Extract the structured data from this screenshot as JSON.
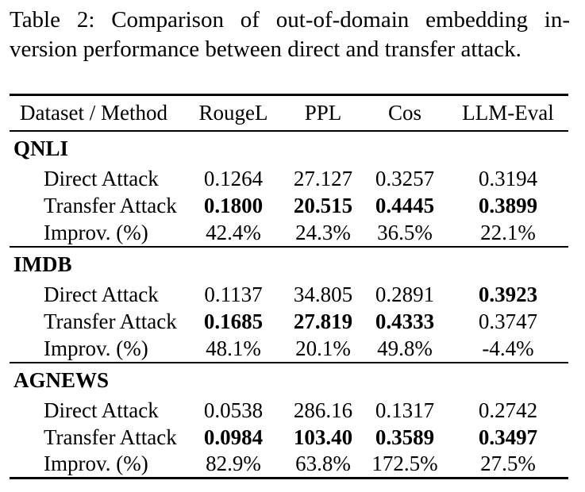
{
  "caption": {
    "line1": "Table 2: Comparison of out-of-domain embedding in-",
    "line2": "version performance between direct and transfer attack."
  },
  "table": {
    "columns": [
      "Dataset / Method",
      "RougeL",
      "PPL",
      "Cos",
      "LLM-Eval"
    ],
    "sections": [
      {
        "name": "QNLI",
        "rows": [
          {
            "label": "Direct Attack",
            "values": [
              "0.1264",
              "27.127",
              "0.3257",
              "0.3194"
            ],
            "bold": [
              false,
              false,
              false,
              false
            ]
          },
          {
            "label": "Transfer Attack",
            "values": [
              "0.1800",
              "20.515",
              "0.4445",
              "0.3899"
            ],
            "bold": [
              true,
              true,
              true,
              true
            ]
          },
          {
            "label": "Improv. (%)",
            "values": [
              "42.4%",
              "24.3%",
              "36.5%",
              "22.1%"
            ],
            "bold": [
              false,
              false,
              false,
              false
            ]
          }
        ]
      },
      {
        "name": "IMDB",
        "rows": [
          {
            "label": "Direct Attack",
            "values": [
              "0.1137",
              "34.805",
              "0.2891",
              "0.3923"
            ],
            "bold": [
              false,
              false,
              false,
              true
            ]
          },
          {
            "label": "Transfer Attack",
            "values": [
              "0.1685",
              "27.819",
              "0.4333",
              "0.3747"
            ],
            "bold": [
              true,
              true,
              true,
              false
            ]
          },
          {
            "label": "Improv. (%)",
            "values": [
              "48.1%",
              "20.1%",
              "49.8%",
              "-4.4%"
            ],
            "bold": [
              false,
              false,
              false,
              false
            ]
          }
        ]
      },
      {
        "name": "AGNEWS",
        "rows": [
          {
            "label": "Direct Attack",
            "values": [
              "0.0538",
              "286.16",
              "0.1317",
              "0.2742"
            ],
            "bold": [
              false,
              false,
              false,
              false
            ]
          },
          {
            "label": "Transfer Attack",
            "values": [
              "0.0984",
              "103.40",
              "0.3589",
              "0.3497"
            ],
            "bold": [
              true,
              true,
              true,
              true
            ]
          },
          {
            "label": "Improv. (%)",
            "values": [
              "82.9%",
              "63.8%",
              "172.5%",
              "27.5%"
            ],
            "bold": [
              false,
              false,
              false,
              false
            ]
          }
        ]
      }
    ]
  },
  "colors": {
    "text": "#000000",
    "background": "#ffffff",
    "rule": "#000000"
  }
}
